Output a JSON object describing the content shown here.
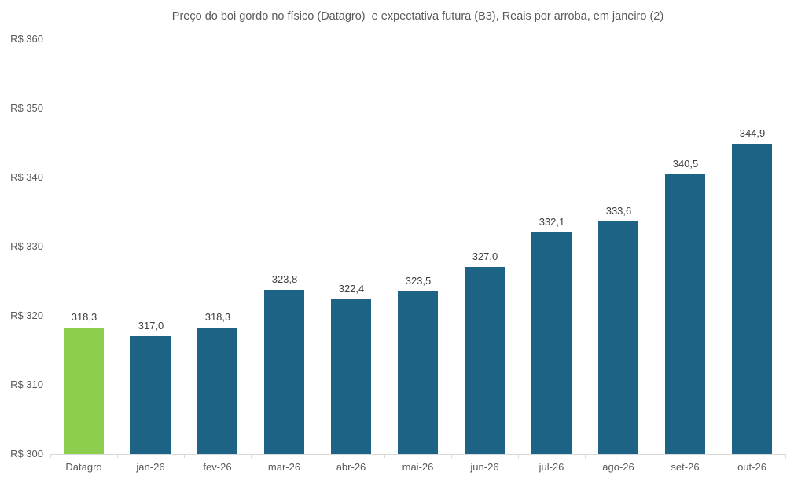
{
  "title": "Preço do boi gordo no físico (Datagro)  e expectativa futura (B3), Reais por arroba, em janeiro (2)",
  "chart_data": {
    "type": "bar",
    "title": "Preço do boi gordo no físico (Datagro)  e expectativa futura (B3), Reais por arroba, em janeiro (2)",
    "categories": [
      "Datagro",
      "jan-26",
      "fev-26",
      "mar-26",
      "abr-26",
      "mai-26",
      "jun-26",
      "jul-26",
      "ago-26",
      "set-26",
      "out-26"
    ],
    "values": [
      318.3,
      317.0,
      318.3,
      323.8,
      322.4,
      323.5,
      327.0,
      332.1,
      333.6,
      340.5,
      344.9
    ],
    "value_labels": [
      "318,3",
      "317,0",
      "318,3",
      "323,8",
      "322,4",
      "323,5",
      "327,0",
      "332,1",
      "333,6",
      "340,5",
      "344,9"
    ],
    "xlabel": "",
    "ylabel": "",
    "ylim": [
      300,
      360
    ],
    "ytick_step": 10,
    "ytick_labels": [
      "R$ 300",
      "R$ 310",
      "R$ 320",
      "R$ 330",
      "R$ 340",
      "R$ 350",
      "R$ 360"
    ],
    "grid": false,
    "legend_position": "none",
    "highlight_index": 0,
    "colors": {
      "highlight_bar": "#8DCE4F",
      "default_bar": "#1D6385",
      "axis_line": "#D9D9D9",
      "title_text": "#595959",
      "data_label_text": "#404040",
      "axis_label_text": "#595959"
    }
  }
}
